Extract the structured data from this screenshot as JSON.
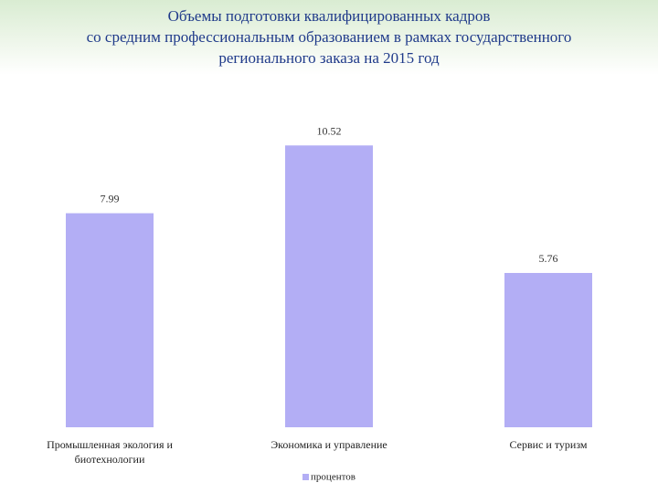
{
  "chart_data": {
    "type": "bar",
    "title_lines": [
      "Объемы подготовки квалифицированных кадров",
      "со средним профессиональным образованием в рамках государственного",
      "регионального заказа на 2015 год"
    ],
    "categories": [
      [
        "Промышленная экология и",
        "биотехнологии"
      ],
      [
        "Экономика и управление"
      ],
      [
        "Сервис и туризм"
      ]
    ],
    "series": [
      {
        "name": "процентов",
        "values": [
          7.99,
          10.52,
          5.76
        ],
        "labels": [
          "7.99",
          "10.52",
          "5.76"
        ]
      }
    ],
    "ylim": [
      0,
      12.2
    ],
    "bar_color": "#b3aef5",
    "legend": "bottom"
  }
}
